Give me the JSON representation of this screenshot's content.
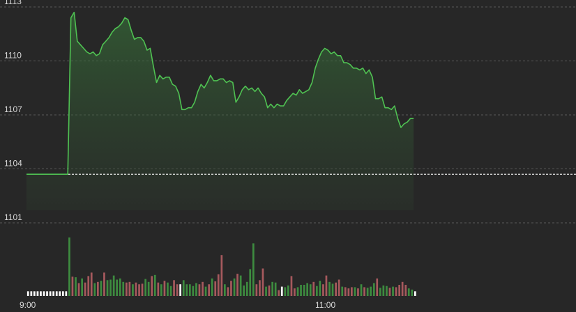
{
  "chart_data": {
    "type": "area",
    "title": "",
    "xlabel": "",
    "ylabel": "",
    "x_tick_labels": [
      "9:00",
      "11:00"
    ],
    "y_ticks": [
      1101,
      1104,
      1107,
      1110,
      1113
    ],
    "ylim": [
      1101,
      1113
    ],
    "reference_line": 1103.7,
    "grid": true,
    "colors": {
      "background": "#272727",
      "line": "#4fc152",
      "grid": "#5a5a5a",
      "reference": "#e6e6e6",
      "volume_up": "#3d8b3f",
      "volume_down": "#a6595d",
      "volume_flat": "#ffffff"
    },
    "series": [
      {
        "type": "line",
        "values": [
          1103.7,
          1103.7,
          1103.7,
          1103.7,
          1103.7,
          1103.7,
          1103.7,
          1103.7,
          1103.7,
          1103.7,
          1103.7,
          1103.7,
          1103.7,
          1103.7,
          1112.4,
          1112.7,
          1111.1,
          1110.9,
          1110.7,
          1110.5,
          1110.4,
          1110.5,
          1110.3,
          1110.4,
          1110.9,
          1111.1,
          1111.3,
          1111.6,
          1111.8,
          1111.9,
          1112.1,
          1112.4,
          1112.3,
          1111.7,
          1111.2,
          1111.3,
          1111.3,
          1111.1,
          1110.6,
          1110.7,
          1109.7,
          1108.8,
          1109.2,
          1109.0,
          1109.1,
          1109.1,
          1108.7,
          1108.6,
          1108.2,
          1107.3,
          1107.3,
          1107.4,
          1107.4,
          1107.7,
          1108.3,
          1108.7,
          1108.5,
          1108.8,
          1109.2,
          1108.9,
          1108.9,
          1109.0,
          1109.0,
          1108.8,
          1108.9,
          1108.8,
          1107.7,
          1108.0,
          1108.4,
          1108.6,
          1108.4,
          1108.5,
          1108.3,
          1108.5,
          1108.2,
          1108.0,
          1107.4,
          1107.6,
          1107.4,
          1107.6,
          1107.5,
          1107.5,
          1107.8,
          1108.0,
          1108.2,
          1108.1,
          1108.4,
          1108.2,
          1108.3,
          1108.4,
          1108.8,
          1109.6,
          1110.1,
          1110.5,
          1110.7,
          1110.6,
          1110.4,
          1110.5,
          1110.3,
          1110.3,
          1109.9,
          1109.9,
          1109.8,
          1109.6,
          1109.6,
          1109.5,
          1109.6,
          1109.3,
          1109.5,
          1109.1,
          1107.9,
          1107.9,
          1108.0,
          1107.4,
          1107.4,
          1107.3,
          1107.5,
          1106.8,
          1106.3,
          1106.5,
          1106.6,
          1106.8,
          1106.8
        ]
      },
      {
        "type": "volume",
        "values": [
          0.08,
          0.08,
          0.08,
          0.08,
          0.08,
          0.08,
          0.08,
          0.08,
          0.08,
          0.08,
          0.08,
          0.08,
          0.08,
          1.0,
          0.33,
          0.32,
          0.22,
          0.3,
          0.23,
          0.34,
          0.4,
          0.22,
          0.24,
          0.26,
          0.4,
          0.27,
          0.28,
          0.35,
          0.28,
          0.3,
          0.24,
          0.23,
          0.24,
          0.2,
          0.23,
          0.2,
          0.21,
          0.29,
          0.24,
          0.34,
          0.36,
          0.23,
          0.2,
          0.26,
          0.23,
          0.17,
          0.27,
          0.2,
          0.2,
          0.27,
          0.2,
          0.2,
          0.17,
          0.22,
          0.2,
          0.24,
          0.16,
          0.2,
          0.3,
          0.25,
          0.37,
          0.7,
          0.2,
          0.15,
          0.26,
          0.3,
          0.38,
          0.35,
          0.18,
          0.24,
          0.46,
          0.9,
          0.2,
          0.27,
          0.47,
          0.16,
          0.18,
          0.24,
          0.23,
          0.1,
          0.16,
          0.15,
          0.18,
          0.34,
          0.13,
          0.15,
          0.19,
          0.19,
          0.22,
          0.2,
          0.24,
          0.17,
          0.26,
          0.2,
          0.35,
          0.24,
          0.21,
          0.23,
          0.28,
          0.16,
          0.15,
          0.13,
          0.15,
          0.15,
          0.13,
          0.2,
          0.15,
          0.14,
          0.16,
          0.22,
          0.3,
          0.14,
          0.18,
          0.17,
          0.14,
          0.16,
          0.15,
          0.19,
          0.24,
          0.19,
          0.13,
          0.11,
          0.08
        ],
        "directions": [
          "f",
          "f",
          "f",
          "f",
          "f",
          "f",
          "f",
          "f",
          "f",
          "f",
          "f",
          "f",
          "f",
          "u",
          "d",
          "u",
          "d",
          "u",
          "d",
          "d",
          "d",
          "u",
          "d",
          "u",
          "d",
          "u",
          "u",
          "u",
          "u",
          "u",
          "u",
          "d",
          "d",
          "u",
          "d",
          "d",
          "d",
          "u",
          "u",
          "d",
          "u",
          "d",
          "u",
          "d",
          "u",
          "u",
          "d",
          "d",
          "f",
          "u",
          "u",
          "u",
          "u",
          "u",
          "d",
          "d",
          "u",
          "d",
          "u",
          "d",
          "d",
          "d",
          "u",
          "d",
          "d",
          "u",
          "d",
          "u",
          "u",
          "u",
          "u",
          "u",
          "d",
          "d",
          "d",
          "u",
          "d",
          "u",
          "u",
          "d",
          "f",
          "u",
          "u",
          "d",
          "d",
          "u",
          "u",
          "u",
          "u",
          "u",
          "d",
          "u",
          "u",
          "d",
          "d",
          "u",
          "u",
          "d",
          "d",
          "u",
          "d",
          "d",
          "d",
          "u",
          "d",
          "u",
          "d",
          "u",
          "u",
          "u",
          "d",
          "u",
          "u",
          "u",
          "d",
          "u",
          "d",
          "d",
          "d",
          "d",
          "u",
          "u",
          "f"
        ]
      }
    ]
  }
}
